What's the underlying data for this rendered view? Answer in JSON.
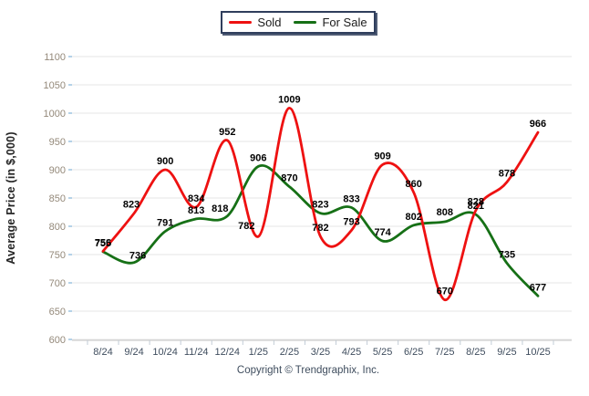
{
  "chart_data": {
    "type": "line",
    "title": "",
    "xlabel": "",
    "ylabel": "Average Price (in $,000)",
    "ylim": [
      600,
      1100
    ],
    "ytick_step": 50,
    "grid": "horizontal",
    "legend_position": "top-center",
    "categories": [
      "8/24",
      "9/24",
      "10/24",
      "11/24",
      "12/24",
      "1/25",
      "2/25",
      "3/25",
      "4/25",
      "5/25",
      "6/25",
      "7/25",
      "8/25",
      "9/25",
      "10/25"
    ],
    "series": [
      {
        "name": "Sold",
        "color": "#ee1111",
        "values": [
          756,
          823,
          900,
          834,
          952,
          782,
          1009,
          782,
          793,
          909,
          860,
          670,
          828,
          878,
          966
        ],
        "label_offsets": {
          "1": [
            -3,
            -6
          ],
          "5": [
            -13,
            -8
          ]
        }
      },
      {
        "name": "For Sale",
        "color": "#167016",
        "values": [
          755,
          736,
          791,
          813,
          818,
          906,
          870,
          823,
          833,
          774,
          802,
          808,
          821,
          735,
          677
        ],
        "label_offsets": {
          "1": [
            4,
            -4
          ],
          "4": [
            -8,
            -5
          ],
          "11": [
            0,
            -7
          ]
        }
      }
    ]
  },
  "legend": {
    "items": [
      {
        "label": "Sold",
        "color": "#ee1111"
      },
      {
        "label": "For Sale",
        "color": "#167016"
      }
    ]
  },
  "footer": {
    "copyright": "Copyright © Trendgraphix, Inc."
  },
  "style": {
    "grid_color": "#e6e6e6",
    "axis_color": "#c6c6c6",
    "xtick_color": "#c2ccd6",
    "ytick_color": "#9cc3e0",
    "ylabel_color": "#94897a",
    "xlabel_color": "#3f4d5e",
    "data_label_color": "#000000"
  }
}
